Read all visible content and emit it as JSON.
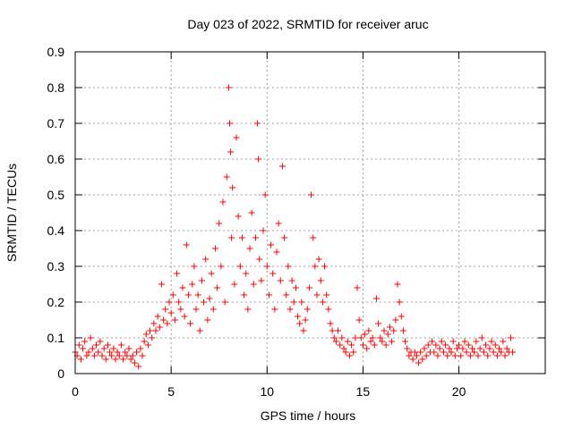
{
  "chart_data": {
    "type": "scatter",
    "title": "Day 023 of 2022, SRMTID for receiver aruc",
    "xlabel": "GPS time / hours",
    "ylabel": "SRMTID / TECUs",
    "xlim": [
      0,
      24.5
    ],
    "ylim": [
      0,
      0.9
    ],
    "xticks": [
      0,
      5,
      10,
      15,
      20
    ],
    "yticks": [
      0,
      0.1,
      0.2,
      0.3,
      0.4,
      0.5,
      0.6,
      0.7,
      0.8,
      0.9
    ],
    "grid": true,
    "marker": "+",
    "color": "#ff0000",
    "series": [
      {
        "name": "SRMTID",
        "points": [
          [
            0.0,
            0.06
          ],
          [
            0.1,
            0.05
          ],
          [
            0.2,
            0.08
          ],
          [
            0.3,
            0.04
          ],
          [
            0.4,
            0.07
          ],
          [
            0.5,
            0.09
          ],
          [
            0.6,
            0.05
          ],
          [
            0.7,
            0.06
          ],
          [
            0.8,
            0.1
          ],
          [
            0.9,
            0.07
          ],
          [
            1.0,
            0.05
          ],
          [
            1.1,
            0.08
          ],
          [
            1.2,
            0.06
          ],
          [
            1.3,
            0.09
          ],
          [
            1.4,
            0.05
          ],
          [
            1.5,
            0.07
          ],
          [
            1.6,
            0.04
          ],
          [
            1.7,
            0.08
          ],
          [
            1.8,
            0.06
          ],
          [
            1.9,
            0.05
          ],
          [
            2.0,
            0.07
          ],
          [
            2.1,
            0.04
          ],
          [
            2.2,
            0.06
          ],
          [
            2.3,
            0.05
          ],
          [
            2.4,
            0.08
          ],
          [
            2.5,
            0.04
          ],
          [
            2.6,
            0.06
          ],
          [
            2.7,
            0.05
          ],
          [
            2.8,
            0.07
          ],
          [
            2.9,
            0.04
          ],
          [
            3.0,
            0.05
          ],
          [
            3.1,
            0.03
          ],
          [
            3.2,
            0.06
          ],
          [
            3.3,
            0.02
          ],
          [
            3.4,
            0.07
          ],
          [
            3.5,
            0.05
          ],
          [
            3.6,
            0.09
          ],
          [
            3.7,
            0.11
          ],
          [
            3.8,
            0.08
          ],
          [
            3.9,
            0.12
          ],
          [
            4.0,
            0.1
          ],
          [
            4.1,
            0.14
          ],
          [
            4.2,
            0.12
          ],
          [
            4.3,
            0.16
          ],
          [
            4.4,
            0.13
          ],
          [
            4.5,
            0.25
          ],
          [
            4.6,
            0.15
          ],
          [
            4.7,
            0.18
          ],
          [
            4.8,
            0.14
          ],
          [
            4.9,
            0.2
          ],
          [
            5.0,
            0.17
          ],
          [
            5.1,
            0.22
          ],
          [
            5.2,
            0.15
          ],
          [
            5.3,
            0.28
          ],
          [
            5.4,
            0.2
          ],
          [
            5.5,
            0.18
          ],
          [
            5.6,
            0.24
          ],
          [
            5.7,
            0.16
          ],
          [
            5.8,
            0.36
          ],
          [
            5.9,
            0.22
          ],
          [
            6.0,
            0.14
          ],
          [
            6.1,
            0.25
          ],
          [
            6.2,
            0.3
          ],
          [
            6.3,
            0.18
          ],
          [
            6.4,
            0.22
          ],
          [
            6.5,
            0.12
          ],
          [
            6.6,
            0.26
          ],
          [
            6.7,
            0.2
          ],
          [
            6.8,
            0.32
          ],
          [
            6.9,
            0.15
          ],
          [
            7.0,
            0.21
          ],
          [
            7.1,
            0.28
          ],
          [
            7.2,
            0.18
          ],
          [
            7.3,
            0.35
          ],
          [
            7.4,
            0.24
          ],
          [
            7.5,
            0.42
          ],
          [
            7.6,
            0.3
          ],
          [
            7.7,
            0.48
          ],
          [
            7.8,
            0.2
          ],
          [
            7.9,
            0.55
          ],
          [
            8.0,
            0.8
          ],
          [
            8.05,
            0.7
          ],
          [
            8.1,
            0.62
          ],
          [
            8.15,
            0.38
          ],
          [
            8.2,
            0.52
          ],
          [
            8.3,
            0.25
          ],
          [
            8.4,
            0.66
          ],
          [
            8.5,
            0.44
          ],
          [
            8.6,
            0.3
          ],
          [
            8.7,
            0.38
          ],
          [
            8.8,
            0.22
          ],
          [
            8.9,
            0.28
          ],
          [
            9.0,
            0.18
          ],
          [
            9.1,
            0.35
          ],
          [
            9.2,
            0.45
          ],
          [
            9.3,
            0.25
          ],
          [
            9.4,
            0.38
          ],
          [
            9.5,
            0.7
          ],
          [
            9.55,
            0.6
          ],
          [
            9.6,
            0.32
          ],
          [
            9.7,
            0.26
          ],
          [
            9.8,
            0.4
          ],
          [
            9.9,
            0.5
          ],
          [
            10.0,
            0.3
          ],
          [
            10.1,
            0.22
          ],
          [
            10.2,
            0.36
          ],
          [
            10.3,
            0.28
          ],
          [
            10.4,
            0.18
          ],
          [
            10.5,
            0.34
          ],
          [
            10.6,
            0.42
          ],
          [
            10.7,
            0.26
          ],
          [
            10.8,
            0.58
          ],
          [
            10.9,
            0.38
          ],
          [
            11.0,
            0.22
          ],
          [
            11.1,
            0.3
          ],
          [
            11.2,
            0.18
          ],
          [
            11.3,
            0.26
          ],
          [
            11.4,
            0.2
          ],
          [
            11.5,
            0.24
          ],
          [
            11.6,
            0.16
          ],
          [
            11.7,
            0.14
          ],
          [
            11.8,
            0.2
          ],
          [
            11.9,
            0.12
          ],
          [
            12.0,
            0.15
          ],
          [
            12.1,
            0.18
          ],
          [
            12.2,
            0.24
          ],
          [
            12.3,
            0.5
          ],
          [
            12.4,
            0.38
          ],
          [
            12.5,
            0.3
          ],
          [
            12.6,
            0.22
          ],
          [
            12.7,
            0.32
          ],
          [
            12.8,
            0.26
          ],
          [
            12.9,
            0.2
          ],
          [
            13.0,
            0.3
          ],
          [
            13.1,
            0.22
          ],
          [
            13.2,
            0.18
          ],
          [
            13.3,
            0.14
          ],
          [
            13.4,
            0.12
          ],
          [
            13.5,
            0.1
          ],
          [
            13.6,
            0.09
          ],
          [
            13.7,
            0.12
          ],
          [
            13.8,
            0.08
          ],
          [
            13.9,
            0.1
          ],
          [
            14.0,
            0.07
          ],
          [
            14.1,
            0.06
          ],
          [
            14.2,
            0.09
          ],
          [
            14.3,
            0.05
          ],
          [
            14.4,
            0.08
          ],
          [
            14.5,
            0.06
          ],
          [
            14.6,
            0.1
          ],
          [
            14.7,
            0.24
          ],
          [
            14.8,
            0.15
          ],
          [
            14.9,
            0.1
          ],
          [
            15.0,
            0.08
          ],
          [
            15.1,
            0.11
          ],
          [
            15.2,
            0.07
          ],
          [
            15.3,
            0.12
          ],
          [
            15.4,
            0.09
          ],
          [
            15.5,
            0.1
          ],
          [
            15.6,
            0.08
          ],
          [
            15.7,
            0.21
          ],
          [
            15.8,
            0.14
          ],
          [
            15.9,
            0.1
          ],
          [
            16.0,
            0.09
          ],
          [
            16.1,
            0.12
          ],
          [
            16.2,
            0.08
          ],
          [
            16.3,
            0.11
          ],
          [
            16.4,
            0.13
          ],
          [
            16.5,
            0.09
          ],
          [
            16.6,
            0.12
          ],
          [
            16.7,
            0.15
          ],
          [
            16.8,
            0.25
          ],
          [
            16.9,
            0.2
          ],
          [
            17.0,
            0.16
          ],
          [
            17.1,
            0.12
          ],
          [
            17.2,
            0.09
          ],
          [
            17.3,
            0.07
          ],
          [
            17.4,
            0.05
          ],
          [
            17.5,
            0.06
          ],
          [
            17.6,
            0.04
          ],
          [
            17.7,
            0.06
          ],
          [
            17.8,
            0.05
          ],
          [
            17.9,
            0.03
          ],
          [
            18.0,
            0.06
          ],
          [
            18.1,
            0.04
          ],
          [
            18.2,
            0.07
          ],
          [
            18.3,
            0.05
          ],
          [
            18.4,
            0.08
          ],
          [
            18.5,
            0.06
          ],
          [
            18.6,
            0.09
          ],
          [
            18.7,
            0.06
          ],
          [
            18.8,
            0.08
          ],
          [
            18.9,
            0.05
          ],
          [
            19.0,
            0.07
          ],
          [
            19.1,
            0.09
          ],
          [
            19.2,
            0.06
          ],
          [
            19.3,
            0.08
          ],
          [
            19.4,
            0.05
          ],
          [
            19.5,
            0.07
          ],
          [
            19.6,
            0.06
          ],
          [
            19.7,
            0.09
          ],
          [
            19.8,
            0.05
          ],
          [
            19.9,
            0.07
          ],
          [
            20.0,
            0.08
          ],
          [
            20.1,
            0.05
          ],
          [
            20.2,
            0.07
          ],
          [
            20.3,
            0.09
          ],
          [
            20.4,
            0.06
          ],
          [
            20.5,
            0.08
          ],
          [
            20.6,
            0.05
          ],
          [
            20.7,
            0.07
          ],
          [
            20.8,
            0.06
          ],
          [
            20.9,
            0.09
          ],
          [
            21.0,
            0.05
          ],
          [
            21.1,
            0.07
          ],
          [
            21.2,
            0.1
          ],
          [
            21.3,
            0.06
          ],
          [
            21.4,
            0.08
          ],
          [
            21.5,
            0.05
          ],
          [
            21.6,
            0.07
          ],
          [
            21.7,
            0.09
          ],
          [
            21.8,
            0.06
          ],
          [
            21.9,
            0.08
          ],
          [
            22.0,
            0.05
          ],
          [
            22.1,
            0.07
          ],
          [
            22.2,
            0.06
          ],
          [
            22.3,
            0.09
          ],
          [
            22.4,
            0.05
          ],
          [
            22.5,
            0.07
          ],
          [
            22.6,
            0.06
          ],
          [
            22.7,
            0.1
          ],
          [
            22.8,
            0.06
          ]
        ]
      }
    ]
  }
}
